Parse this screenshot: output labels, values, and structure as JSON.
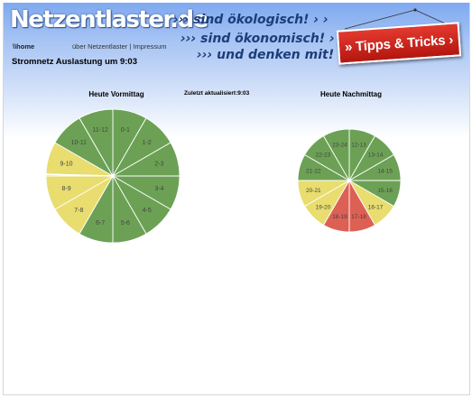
{
  "header": {
    "logo": "Netzentlaster.de",
    "slogans": [
      "››› sind ökologisch! › ›",
      "››› sind ökonomisch! › ›",
      "››› und denken mit! › ›"
    ],
    "tipps_button": "» Tipps & Tricks ›"
  },
  "nav": {
    "home": "\\\\home",
    "about": "über Netzentlaster",
    "separator": "|",
    "impressum": "Impressum"
  },
  "page_title": "Stromnetz Auslastung um 9:03",
  "updated": "Zuletzt aktualisiert:9:03",
  "colors": {
    "green": "#6ca155",
    "yellow": "#e8dd6e",
    "red": "#dd6055",
    "logo_blue": "#1d3d7a",
    "tipps_red": "#cc2a22"
  },
  "morning": {
    "title": "Heute Vormittag",
    "current_time": "9:03",
    "segments": [
      {
        "label": "0-1",
        "status": "green"
      },
      {
        "label": "1-2",
        "status": "green"
      },
      {
        "label": "2-3",
        "status": "green"
      },
      {
        "label": "3-4",
        "status": "green"
      },
      {
        "label": "4-5",
        "status": "green"
      },
      {
        "label": "5-6",
        "status": "green"
      },
      {
        "label": "6-7",
        "status": "green"
      },
      {
        "label": "7-8",
        "status": "yellow"
      },
      {
        "label": "8-9",
        "status": "yellow"
      },
      {
        "label": "9-10",
        "status": "yellow"
      },
      {
        "label": "10-11",
        "status": "green"
      },
      {
        "label": "11-12",
        "status": "green"
      }
    ]
  },
  "afternoon": {
    "title": "Heute Nachmittag",
    "segments": [
      {
        "label": "12-13",
        "status": "green"
      },
      {
        "label": "13-14",
        "status": "green"
      },
      {
        "label": "14-15",
        "status": "green"
      },
      {
        "label": "15-16",
        "status": "green"
      },
      {
        "label": "16-17",
        "status": "yellow"
      },
      {
        "label": "17-18",
        "status": "red"
      },
      {
        "label": "18-19",
        "status": "red"
      },
      {
        "label": "19-20",
        "status": "yellow"
      },
      {
        "label": "20-21",
        "status": "yellow"
      },
      {
        "label": "21-22",
        "status": "green"
      },
      {
        "label": "22-23",
        "status": "green"
      },
      {
        "label": "23-24",
        "status": "green"
      }
    ]
  }
}
